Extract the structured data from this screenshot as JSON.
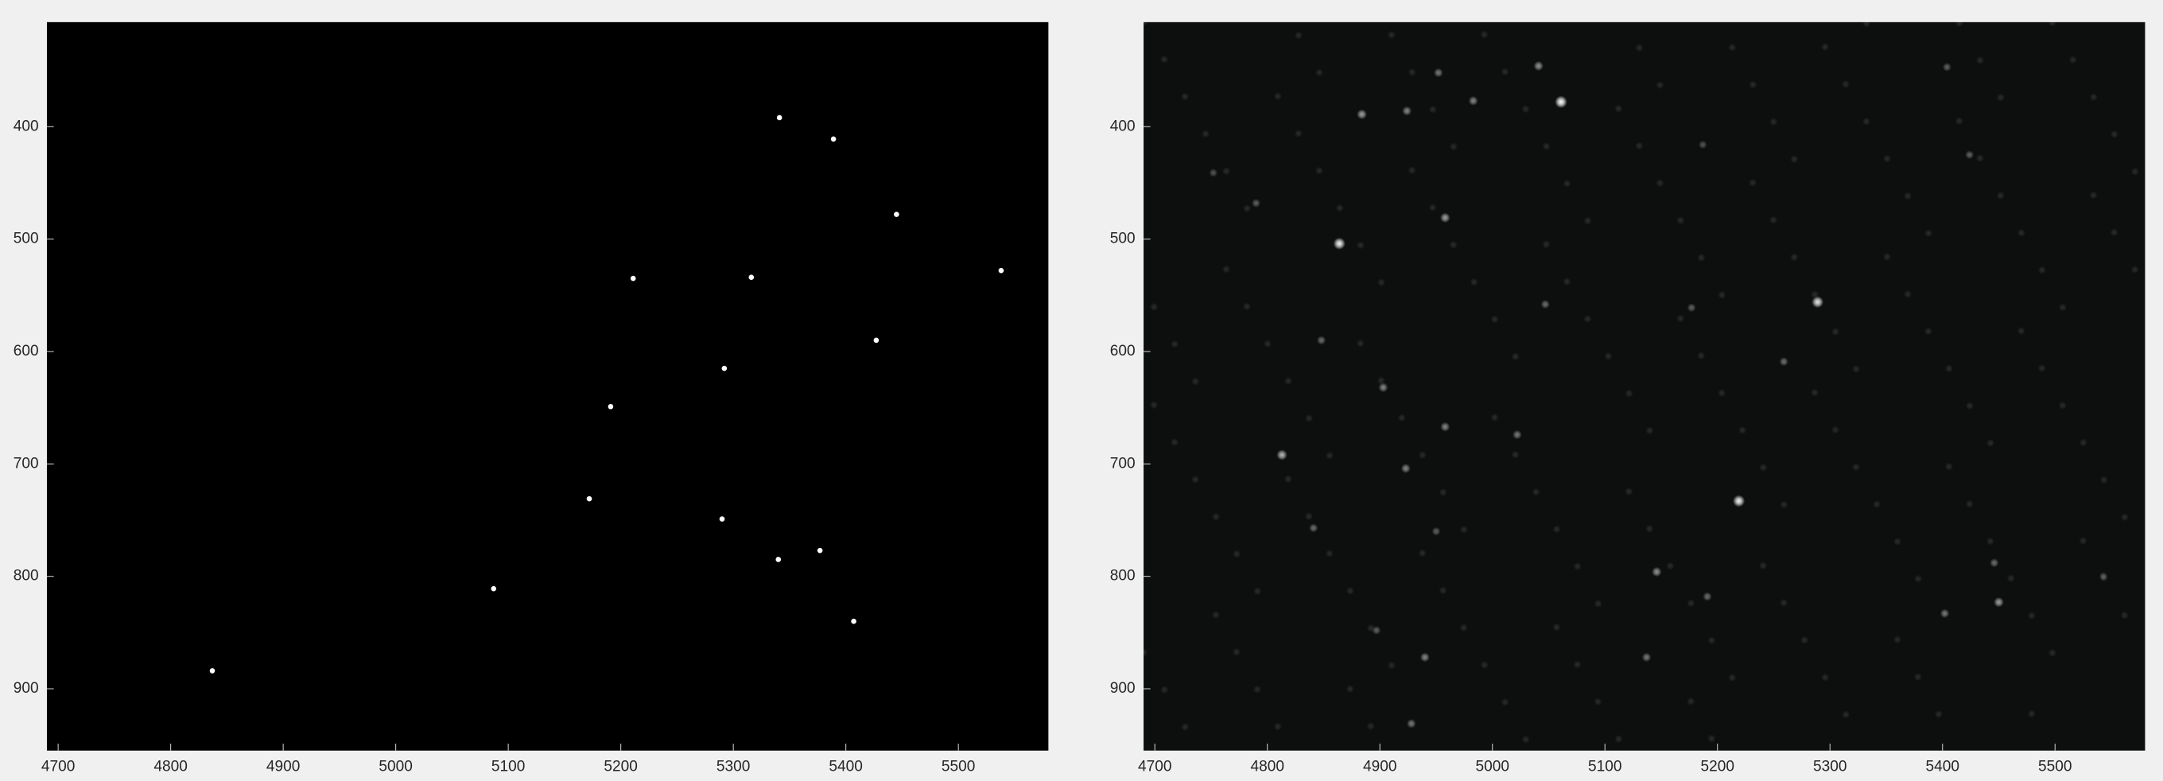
{
  "chart_data": [
    {
      "type": "scatter",
      "x": [
        5341,
        5389,
        5445,
        5538,
        5211,
        5316,
        5427,
        5292,
        5191,
        5172,
        5290,
        5340,
        5377,
        5407,
        5087,
        4837
      ],
      "y": [
        392,
        411,
        478,
        528,
        535,
        534,
        590,
        615,
        649,
        731,
        749,
        785,
        777,
        840,
        811,
        884
      ],
      "color": "#ffffff",
      "background": "#000000",
      "xlim": [
        4690,
        5580
      ],
      "ylim": [
        307,
        955
      ],
      "y_reversed": true,
      "xticks": [
        4700,
        4800,
        4900,
        5000,
        5100,
        5200,
        5300,
        5400,
        5500
      ],
      "yticks": [
        400,
        500,
        600,
        700,
        800,
        900
      ]
    },
    {
      "type": "image",
      "x": [
        5061,
        4864,
        5289,
        5219,
        4813,
        4958,
        4884,
        4924,
        4983,
        5041,
        4952,
        4903,
        4958,
        5022,
        4923,
        5146,
        5191,
        5450,
        5402,
        5446,
        4940,
        5137,
        4928,
        4841,
        4848,
        5259,
        5177,
        5047,
        5404,
        5424,
        4790,
        4950,
        4897,
        5187,
        4752,
        5543
      ],
      "y": [
        378,
        504,
        556,
        733,
        692,
        481,
        389,
        386,
        377,
        346,
        352,
        632,
        667,
        674,
        704,
        796,
        818,
        823,
        833,
        788,
        872,
        872,
        931,
        757,
        590,
        609,
        561,
        558,
        347,
        425,
        468,
        760,
        848,
        416,
        441,
        800
      ],
      "intensity": [
        1,
        0.95,
        0.9,
        0.95,
        0.7,
        0.6,
        0.6,
        0.5,
        0.5,
        0.55,
        0.45,
        0.5,
        0.5,
        0.45,
        0.5,
        0.55,
        0.4,
        0.6,
        0.45,
        0.4,
        0.5,
        0.45,
        0.45,
        0.4,
        0.4,
        0.4,
        0.35,
        0.4,
        0.35,
        0.35,
        0.35,
        0.35,
        0.35,
        0.3,
        0.3,
        0.3
      ],
      "color": "#ffffff",
      "background": "#0d0e0e",
      "xlim": [
        4690,
        5580
      ],
      "ylim": [
        307,
        955
      ],
      "y_reversed": true,
      "xticks": [
        4700,
        4800,
        4900,
        5000,
        5100,
        5200,
        5300,
        5400,
        5500
      ],
      "yticks": [
        400,
        500,
        600,
        700,
        800,
        900
      ]
    }
  ]
}
